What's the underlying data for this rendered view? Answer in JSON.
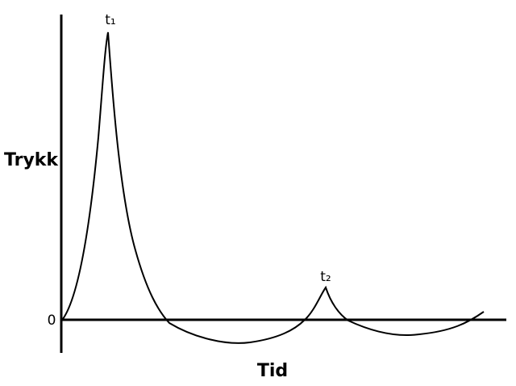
{
  "labels": {
    "y_axis": "Trykk",
    "x_axis": "Tid",
    "origin": "0",
    "peak_1": "t₁",
    "peak_2": "t₂"
  }
}
